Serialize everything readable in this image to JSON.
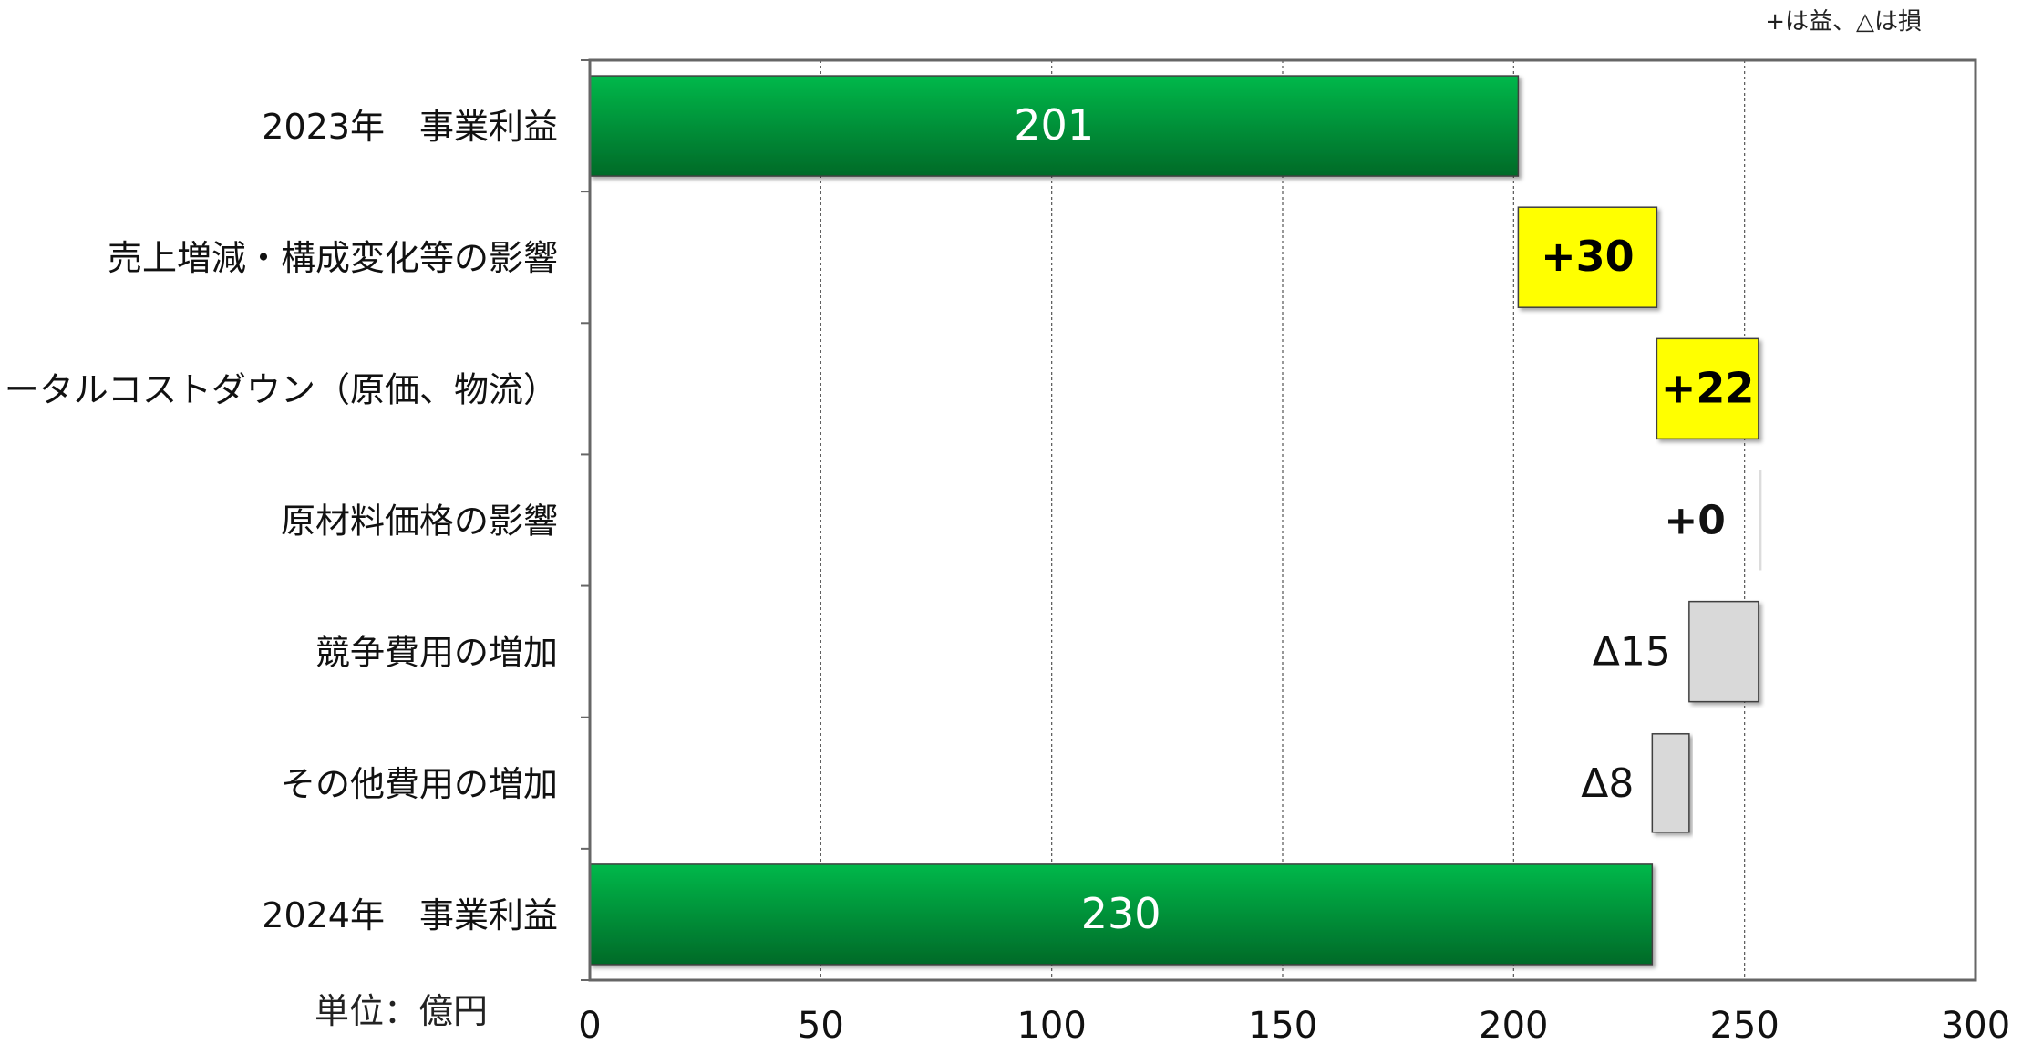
{
  "chart_data": {
    "type": "bar",
    "subtype": "waterfall-horizontal",
    "legend_note": "+は益、△は損",
    "unit_label": "単位：億円",
    "categories": [
      "2023年　事業利益",
      "売上増減・構成変化等の影響",
      "トータルコストダウン（原価、物流）",
      "原材料価格の影響",
      "競争費用の増加",
      "その他費用の増加",
      "2024年　事業利益"
    ],
    "bars": [
      {
        "kind": "total",
        "start": 0,
        "end": 201,
        "label": "201"
      },
      {
        "kind": "gain",
        "start": 201,
        "end": 231,
        "label": "+30"
      },
      {
        "kind": "gain",
        "start": 231,
        "end": 253,
        "label": "+22"
      },
      {
        "kind": "zero",
        "start": 253,
        "end": 253,
        "label": "+0"
      },
      {
        "kind": "loss",
        "start": 253,
        "end": 238,
        "label": "Δ15"
      },
      {
        "kind": "loss",
        "start": 238,
        "end": 230,
        "label": "Δ8"
      },
      {
        "kind": "total",
        "start": 0,
        "end": 230,
        "label": "230"
      }
    ],
    "x_ticks": [
      "0",
      "50",
      "100",
      "150",
      "200",
      "250",
      "300"
    ],
    "xlim": [
      0,
      300
    ],
    "grid": "vertical dashed",
    "colors": {
      "total_top": "#00B84A",
      "total_bottom": "#006A28",
      "gain": "#FFFF00",
      "loss": "#D9D9D9",
      "border": "#404040"
    }
  }
}
